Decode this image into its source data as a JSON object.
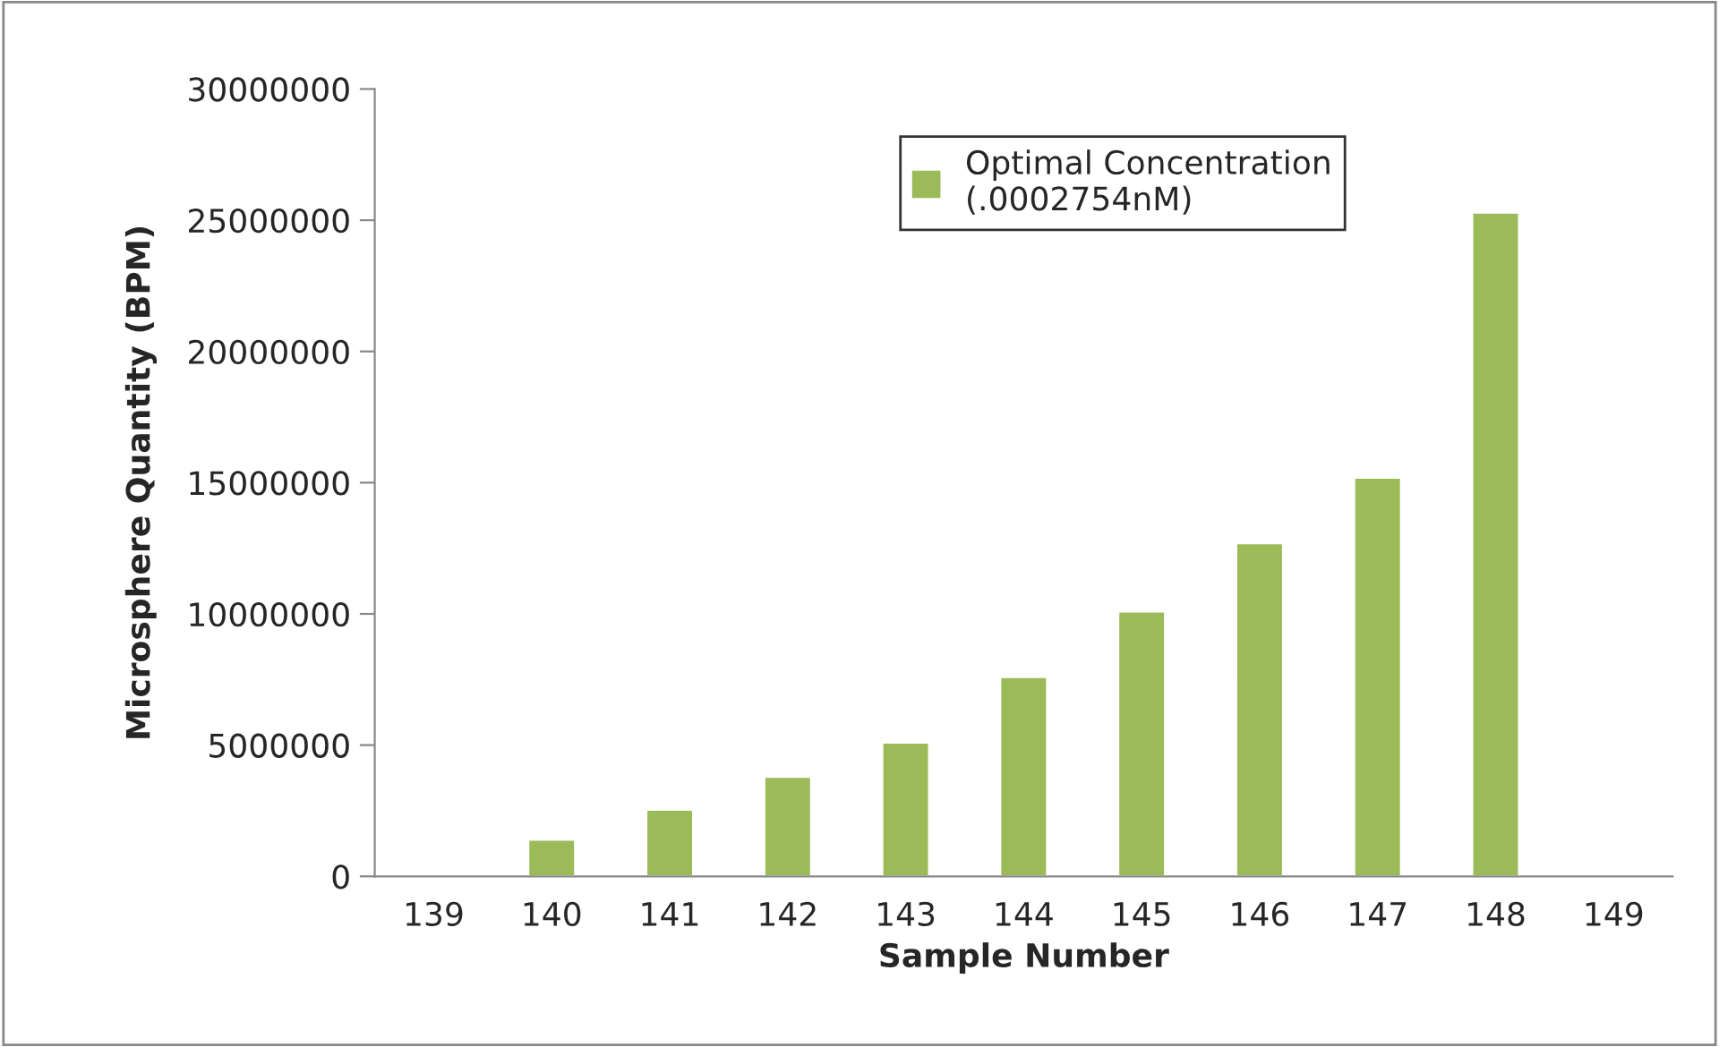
{
  "chart_data": {
    "type": "bar",
    "xlabel": "Sample Number",
    "ylabel": "Microsphere Quantity (BPM)",
    "categories": [
      "139",
      "140",
      "141",
      "142",
      "143",
      "144",
      "145",
      "146",
      "147",
      "148",
      "149"
    ],
    "series": [
      {
        "name": "Optimal Concentration\n(.0002754nM)",
        "color": "#9bbb59",
        "values": [
          null,
          1400000,
          2550000,
          3800000,
          5100000,
          7600000,
          10100000,
          12700000,
          15200000,
          25300000,
          null
        ]
      }
    ],
    "ylim": [
      0,
      30000000
    ],
    "yticks": [
      0,
      5000000,
      10000000,
      15000000,
      20000000,
      25000000,
      30000000
    ],
    "grid": false,
    "legend": "top right"
  }
}
